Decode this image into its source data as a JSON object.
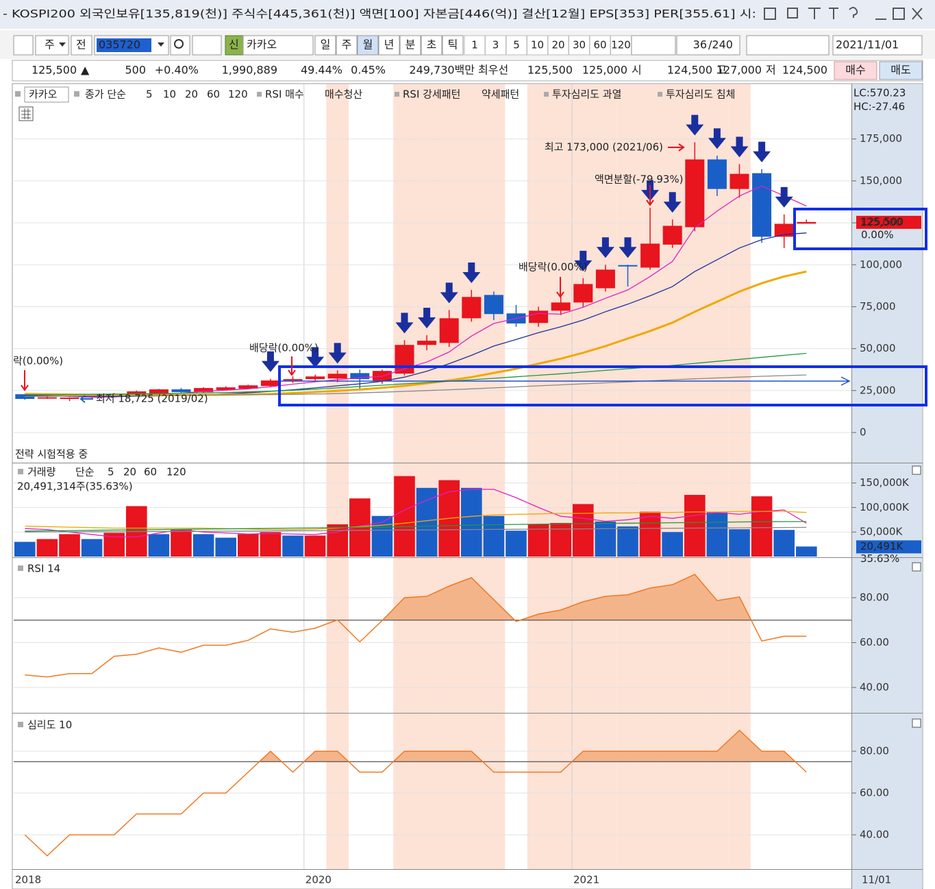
{
  "window": {
    "title": "- KOSPI200 외국인보유[135,819(천)]  주식수[445,361(천)]  액면[100]  자본금[446(억)]  결산[12월]  EPS[353]  PER[355.61]  시:",
    "toolbar": {
      "mode1": "주",
      "mode2": "전",
      "code": "035720",
      "badge": "신",
      "name": "카카오",
      "periods": [
        "일",
        "주",
        "월",
        "년",
        "분",
        "초",
        "틱"
      ],
      "intervals": [
        "1",
        "3",
        "5",
        "10",
        "20",
        "30",
        "60",
        "120"
      ],
      "count": "36",
      "total": "/240",
      "date": "2021/11/01"
    },
    "quote": {
      "price": "125,500",
      "arrow": "▲",
      "change": "500",
      "rate": "+0.40%",
      "volume": "1,990,889",
      "ratio1": "49.44%",
      "ratio2": "0.45%",
      "amount": "249,730백만",
      "best_label": "최우선",
      "ask": "125,500",
      "bid": "125,000",
      "open_label": "시",
      "open": "124,500",
      "high_label": "고",
      "high": "127,000",
      "low_label": "저",
      "low": "124,500",
      "buy": "매수",
      "sell": "매도"
    }
  },
  "chart_data": [
    {
      "type": "candlestick",
      "name": "카카오",
      "ma_label": "종가 단순",
      "signals": [
        {
          "name": "RSI 매수",
          "color": "#e8141e"
        },
        {
          "name": "매수청산",
          "color": "#3a6fe0"
        },
        {
          "name": "RSI 강세패턴",
          "color": "#333333"
        },
        {
          "name": "약세패턴",
          "color": "#333333"
        },
        {
          "name": "투자심리도 과열",
          "color": "#1f3aa8"
        },
        {
          "name": "투자심리도 침체",
          "color": "#e8141e"
        }
      ],
      "lc": "LC:570.23",
      "hc": "HC:-27.46",
      "open": [
        22800,
        20500,
        20500,
        20800,
        21800,
        22500,
        22800,
        25700,
        24100,
        25300,
        26100,
        27700,
        30900,
        31800,
        32200,
        35400,
        30600,
        35100,
        52200,
        53400,
        68100,
        82000,
        71000,
        65300,
        72600,
        77500,
        86000,
        99800,
        98300,
        112000,
        122400,
        162800,
        145200,
        154600,
        116700,
        124500
      ],
      "high": [
        23000,
        21500,
        21000,
        22500,
        23500,
        25000,
        26000,
        26500,
        27000,
        27500,
        28500,
        32000,
        33500,
        34500,
        37000,
        37500,
        37500,
        55000,
        58000,
        73000,
        85000,
        84000,
        76000,
        75000,
        81000,
        92000,
        100000,
        100000,
        134000,
        127000,
        173000,
        165000,
        160000,
        157000,
        130000,
        127000
      ],
      "low": [
        19500,
        20000,
        18725,
        20500,
        21300,
        22000,
        22500,
        23500,
        23800,
        25000,
        25800,
        27000,
        29500,
        31000,
        30000,
        25000,
        29000,
        34000,
        49000,
        51000,
        66000,
        67000,
        63000,
        63000,
        70000,
        75000,
        84000,
        87000,
        97000,
        110000,
        120000,
        141000,
        140000,
        113000,
        110000,
        124500
      ],
      "close": [
        20000,
        21000,
        20800,
        22000,
        22800,
        24500,
        25700,
        24100,
        26500,
        26900,
        28100,
        31000,
        31800,
        33400,
        35000,
        31800,
        36700,
        52200,
        54700,
        68100,
        80800,
        70600,
        65000,
        72600,
        77500,
        88500,
        97100,
        99000,
        112600,
        123200,
        162800,
        145200,
        154200,
        116700,
        124400,
        125500
      ],
      "up_color": "#e8141e",
      "down_color": "#1a5fc8",
      "series": [
        {
          "name": "5",
          "color": "#e020c0",
          "values": [
            22500,
            22000,
            21500,
            21000,
            21200,
            21800,
            22800,
            23500,
            24500,
            25200,
            26000,
            27300,
            28800,
            30200,
            31500,
            32600,
            33500,
            38000,
            42000,
            48000,
            57500,
            65000,
            68000,
            71000,
            70500,
            74700,
            80000,
            85000,
            93000,
            102000,
            122000,
            132000,
            141000,
            147000,
            141000,
            135000
          ]
        },
        {
          "name": "10",
          "color": "#1f2f9a",
          "values": [
            22000,
            21800,
            21600,
            21500,
            21500,
            21600,
            21800,
            22100,
            22500,
            23000,
            23700,
            24500,
            25500,
            26600,
            27800,
            29000,
            30500,
            33000,
            36500,
            41000,
            46000,
            51500,
            55500,
            59500,
            63000,
            67000,
            72000,
            76500,
            81500,
            87000,
            96000,
            103000,
            110000,
            115000,
            118000,
            119000
          ]
        },
        {
          "name": "20",
          "color": "#f0a800",
          "values": [
            23000,
            22800,
            22600,
            22400,
            22300,
            22200,
            22200,
            22300,
            22400,
            22500,
            22700,
            23000,
            23500,
            24100,
            24800,
            25600,
            26600,
            27800,
            29300,
            31000,
            33000,
            35500,
            38000,
            41000,
            44000,
            47500,
            51500,
            56000,
            60500,
            65500,
            72000,
            78000,
            84000,
            89000,
            93000,
            96000
          ]
        },
        {
          "name": "60",
          "color": "#1a9a40",
          "values": [
            22500,
            22600,
            22700,
            22800,
            22900,
            23000,
            23200,
            23400,
            23600,
            23800,
            24200,
            24600,
            25200,
            25800,
            26600,
            27400,
            28200,
            29000,
            29800,
            30600,
            31400,
            32300,
            33200,
            34100,
            35000,
            36000,
            37000,
            38000,
            39000,
            40000,
            41200,
            42400,
            43600,
            44800,
            46000,
            47200
          ]
        },
        {
          "name": "120",
          "color": "#888888",
          "values": [
            21500,
            21600,
            21700,
            21800,
            21900,
            22000,
            22100,
            22200,
            22300,
            22400,
            22500,
            22600,
            22700,
            22900,
            23200,
            23600,
            24000,
            24500,
            25000,
            25500,
            26000,
            26600,
            27200,
            27800,
            28400,
            29000,
            29600,
            30200,
            30800,
            31400,
            32000,
            32500,
            33000,
            33500,
            33900,
            34300
          ]
        }
      ],
      "ylim": [
        -18000,
        208000
      ],
      "yticks": [
        0,
        {
          "value": 25000,
          "label": "25,000"
        },
        {
          "value": 50000,
          "label": "50,000"
        },
        {
          "value": 75000,
          "label": "75,000"
        },
        {
          "value": 100000,
          "label": "100,000"
        },
        {
          "value": 125000,
          "label": "125,000"
        },
        {
          "value": 150000,
          "label": "150,000"
        },
        {
          "value": 175000,
          "label": "175,000"
        }
      ],
      "annotations": {
        "high": "최고 173,000 (2021/06)",
        "low": "최저 18,725 (2019/02)",
        "split": "액면분할(-79.93%)",
        "dividend1": "배당락(0.00%)",
        "dividend2": "배당락(0.00%)",
        "dividend0": "락(0.00%)",
        "strategy": "전략 시험적용 중"
      },
      "last_label": {
        "price": "125,500",
        "rate": "0.00%"
      }
    },
    {
      "type": "bar",
      "name": "거래량",
      "ma_label": "단순",
      "values": [
        30000,
        35700,
        45700,
        35700,
        48500,
        102800,
        45700,
        55700,
        45700,
        38500,
        45700,
        50000,
        42800,
        42800,
        65700,
        118500,
        82800,
        164000,
        140000,
        155700,
        140000,
        82800,
        52800,
        65700,
        68500,
        107000,
        71400,
        61400,
        91400,
        50000,
        125700,
        90000,
        55700,
        122800,
        54300,
        20491
      ],
      "up_color": "#e8141e",
      "down_color": "#1a5fc8",
      "series": [
        {
          "name": "5",
          "color": "#e020c0",
          "values": [
            57000,
            55000,
            50000,
            45000,
            40000,
            40000,
            48000,
            55000,
            50000,
            48000,
            46000,
            47000,
            46000,
            45000,
            50000,
            62000,
            70000,
            95000,
            115000,
            132000,
            137000,
            137000,
            120000,
            100000,
            82000,
            78000,
            72000,
            75000,
            82000,
            78000,
            84000,
            90000,
            86000,
            92000,
            95000,
            68000
          ]
        },
        {
          "name": "20",
          "color": "#f0a800",
          "values": [
            62000,
            61000,
            60000,
            59000,
            58000,
            58000,
            58000,
            58000,
            58000,
            57000,
            56000,
            55000,
            55000,
            56000,
            58000,
            61000,
            64000,
            68000,
            73000,
            78000,
            82000,
            85000,
            86000,
            87000,
            88000,
            88000,
            89000,
            89000,
            90000,
            90000,
            91000,
            91000,
            92000,
            92000,
            92000,
            90000
          ]
        },
        {
          "name": "60",
          "color": "#1a9a40",
          "values": [
            52000,
            52500,
            53000,
            53500,
            54000,
            54500,
            55000,
            55500,
            56000,
            56500,
            57000,
            57500,
            58000,
            58500,
            59000,
            59500,
            60000,
            61000,
            62000,
            63000,
            64000,
            65000,
            65500,
            66000,
            66500,
            67000,
            67500,
            68000,
            68500,
            69000,
            69500,
            70000,
            70500,
            71000,
            71200,
            71400
          ]
        },
        {
          "name": "120",
          "color": "#888888",
          "values": [
            50000,
            50200,
            50400,
            50600,
            50800,
            51000,
            51200,
            51400,
            51600,
            51800,
            52000,
            52300,
            52600,
            52900,
            53200,
            53500,
            53800,
            54100,
            54400,
            54700,
            55000,
            55300,
            55600,
            55900,
            56200,
            56500,
            56800,
            57100,
            57400,
            57700,
            58000,
            58300,
            58600,
            58900,
            59200,
            59500
          ]
        }
      ],
      "ylim": [
        0,
        190000
      ],
      "yticks": [
        {
          "value": 50000,
          "label": "50,000K"
        },
        {
          "value": 100000,
          "label": "100,000K"
        },
        {
          "value": 150000,
          "label": "150,000K"
        }
      ],
      "summary": "20,491,314주(35.63%)",
      "last_label": {
        "value": "20,491K",
        "rate": "35.63%"
      }
    },
    {
      "type": "line",
      "name": "RSI 14",
      "color": "#f07820",
      "fill": "#f4b48a",
      "values": [
        45.6,
        44.7,
        46.2,
        46.2,
        53.9,
        54.8,
        57.6,
        55.7,
        58.8,
        58.8,
        61,
        66.1,
        64.6,
        66.4,
        70.1,
        60.3,
        69.8,
        80,
        80.6,
        85.2,
        88.9,
        79.1,
        69.4,
        72.7,
        74.5,
        78.2,
        80.6,
        81.3,
        84.3,
        85.8,
        90.4,
        78.7,
        80.3,
        60.7,
        62.8,
        62.8
      ],
      "signal_line": 70,
      "ylim": [
        28.7,
        97.4
      ],
      "yticks": [
        {
          "value": 40,
          "label": "40.00"
        },
        {
          "value": 60,
          "label": "60.00"
        },
        {
          "value": 80,
          "label": "80.00"
        }
      ]
    },
    {
      "type": "line",
      "name": "심리도 10",
      "color": "#f07820",
      "fill": "#f4b48a",
      "values": [
        40,
        30,
        40,
        40,
        40,
        50,
        50,
        50,
        60,
        60,
        70,
        80,
        70,
        80,
        80,
        70,
        70,
        80,
        80,
        80,
        80,
        70,
        70,
        70,
        70,
        80,
        80,
        80,
        80,
        80,
        80,
        80,
        90,
        80,
        80,
        70
      ],
      "signal_line": 75,
      "ylim": [
        23.6,
        97.7
      ],
      "yticks": [
        {
          "value": 40,
          "label": "40.00"
        },
        {
          "value": 60,
          "label": "60.00"
        },
        {
          "value": 80,
          "label": "80.00"
        }
      ],
      "categories": [
        "2018",
        null,
        null,
        null,
        null,
        null,
        null,
        null,
        null,
        null,
        null,
        null,
        null,
        "2020",
        null,
        null,
        null,
        null,
        null,
        null,
        null,
        null,
        null,
        null,
        null,
        "2021",
        null,
        null,
        null,
        null,
        null,
        null,
        null,
        null,
        null,
        null
      ],
      "end_label": "11/01"
    }
  ]
}
